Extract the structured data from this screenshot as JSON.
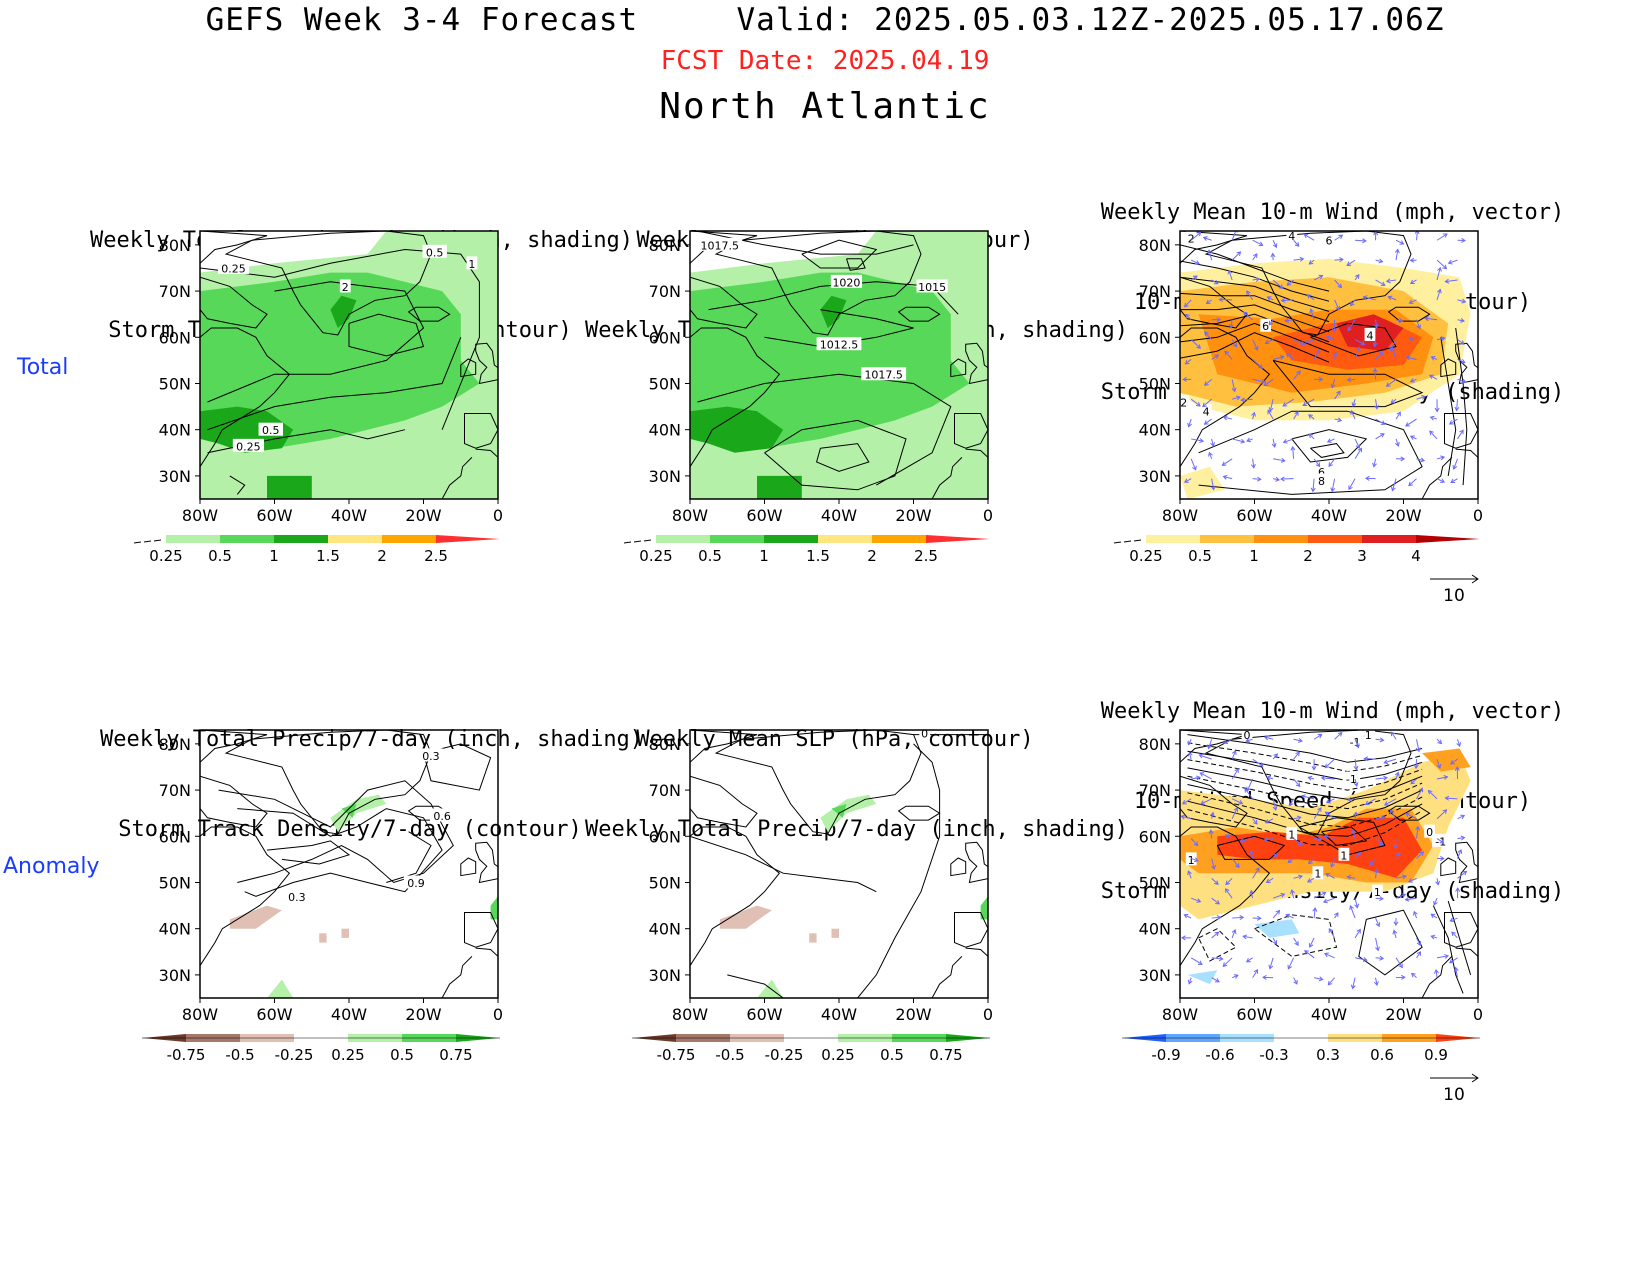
{
  "header": {
    "title": "GEFS Week 3-4 Forecast     Valid: 2025.05.03.12Z-2025.05.17.06Z",
    "fcst_date": "FCST Date: 2025.04.19",
    "region": "North Atlantic"
  },
  "rows": [
    {
      "label": "Total"
    },
    {
      "label": "Anomaly"
    }
  ],
  "axes": {
    "lat_ticks": [
      "80N",
      "70N",
      "60N",
      "50N",
      "40N",
      "30N"
    ],
    "lon_ticks": [
      "80W",
      "60W",
      "40W",
      "20W",
      "0"
    ]
  },
  "colorbars": {
    "precip_total": {
      "labels": [
        "0.25",
        "0.5",
        "1",
        "1.5",
        "2",
        "2.5"
      ],
      "colors": [
        "#b4f0a8",
        "#58d858",
        "#1aa81a",
        "#ffe680",
        "#ffa500",
        "#ff3030"
      ]
    },
    "storm_total": {
      "labels": [
        "0.25",
        "0.5",
        "1",
        "2",
        "3",
        "4"
      ],
      "colors": [
        "#fff0a0",
        "#ffc040",
        "#ff9010",
        "#ff5a10",
        "#e02020",
        "#b40000"
      ]
    },
    "precip_anom": {
      "labels": [
        "-0.75",
        "-0.5",
        "-0.25",
        "0.25",
        "0.5",
        "0.75"
      ],
      "neg_colors": [
        "#6b3a2a",
        "#a5786a",
        "#e0c0b4"
      ],
      "pos_colors": [
        "#b4f0a8",
        "#58d858",
        "#1aa81a"
      ]
    },
    "storm_anom": {
      "labels": [
        "-0.9",
        "-0.6",
        "-0.3",
        "0.3",
        "0.6",
        "0.9"
      ],
      "neg_colors": [
        "#2060ff",
        "#60a8ff",
        "#a8e0ff"
      ],
      "pos_colors": [
        "#ffe080",
        "#ffa020",
        "#ff4010"
      ]
    }
  },
  "panels": [
    {
      "id": "p1",
      "title_lines": [
        "Weekly Total Precip/7-day (inch, shading)",
        "Storm Track Density/7-day (contour)"
      ],
      "contour_labels": [
        "0.5",
        "1",
        "0.25",
        "2",
        "0.5",
        "0.25"
      ]
    },
    {
      "id": "p2",
      "title_lines": [
        "Weekly Mean SLP (hPa, contour)",
        "Weekly Total Precip/7-day (inch, shading)"
      ],
      "contour_labels": [
        "1017.5",
        "1020",
        "1015",
        "1012.5",
        "1017.5"
      ]
    },
    {
      "id": "p3",
      "title_lines": [
        "Weekly Mean 10-m Wind (mph, vector)",
        "10-m Wind Speed (mph, contour)",
        "Storm Track Density/7-day (shading)"
      ],
      "contour_labels": [
        "2",
        "4",
        "6",
        "6",
        "4",
        "2",
        "4",
        "6",
        "8"
      ],
      "vector_ref": "10"
    },
    {
      "id": "p4",
      "title_lines": [
        "Weekly Total Precip/7-day (inch, shading)",
        "Storm Track Density/7-day (contour)"
      ],
      "contour_labels": [
        "0.3",
        "0.6",
        "0.9",
        "0.3"
      ]
    },
    {
      "id": "p5",
      "title_lines": [
        "Weekly Mean SLP (hPa, contour)",
        "Weekly Total Precip/7-day (inch, shading)"
      ],
      "contour_labels": [
        "0"
      ]
    },
    {
      "id": "p6",
      "title_lines": [
        "Weekly Mean 10-m Wind (mph, vector)",
        "10-m Wind Speed (mph, contour)",
        "Storm Track Density/7-day (shading)"
      ],
      "contour_labels": [
        "0",
        "-1",
        "-1",
        "-1",
        "1",
        "1",
        "1",
        "-1",
        "0",
        "1",
        "1"
      ],
      "vector_ref": "10"
    }
  ]
}
